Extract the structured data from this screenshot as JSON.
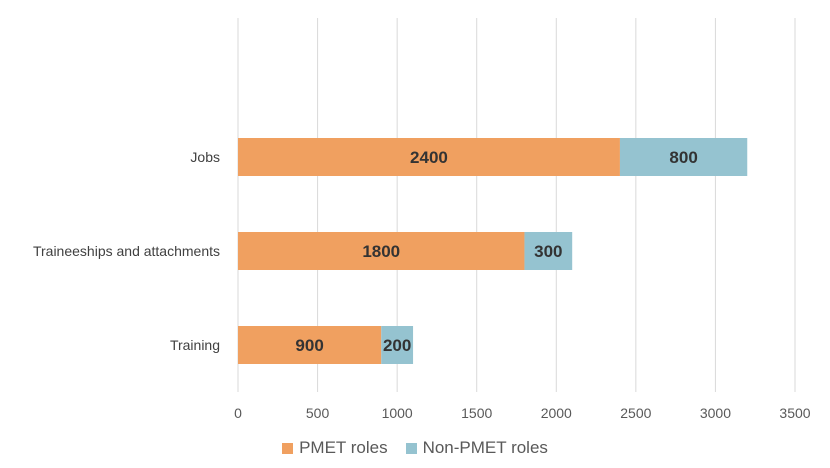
{
  "chart_data": {
    "type": "bar",
    "orientation": "horizontal",
    "stacked": true,
    "categories": [
      "Jobs",
      "Traineeships and attachments",
      "Training"
    ],
    "series": [
      {
        "name": "PMET roles",
        "values": [
          2400,
          1800,
          900
        ],
        "color": "#F0A060"
      },
      {
        "name": "Non-PMET roles",
        "values": [
          800,
          300,
          200
        ],
        "color": "#95C3D0"
      }
    ],
    "xlim": [
      0,
      3500
    ],
    "xticks": [
      0,
      500,
      1000,
      1500,
      2000,
      2500,
      3000,
      3500
    ],
    "grid": true,
    "legend_position": "bottom",
    "data_labels": true
  }
}
